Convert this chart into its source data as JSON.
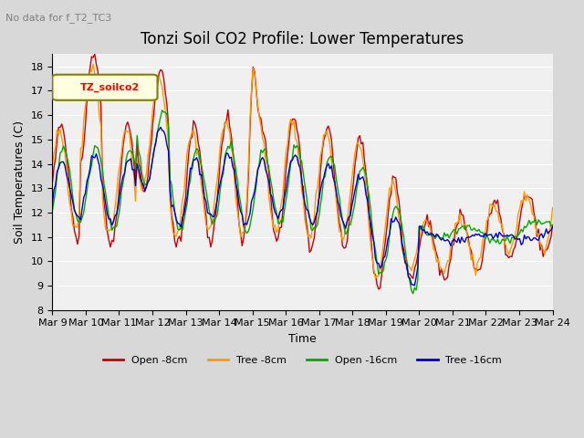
{
  "title": "Tonzi Soil CO2 Profile: Lower Temperatures",
  "subtitle": "No data for f_T2_TC3",
  "xlabel": "Time",
  "ylabel": "Soil Temperatures (C)",
  "ylim": [
    8.0,
    18.5
  ],
  "yticks": [
    8.0,
    9.0,
    10.0,
    11.0,
    12.0,
    13.0,
    14.0,
    15.0,
    16.0,
    17.0,
    18.0
  ],
  "legend_label": "TZ_soilco2",
  "series_labels": [
    "Open -8cm",
    "Tree -8cm",
    "Open -16cm",
    "Tree -16cm"
  ],
  "series_colors": [
    "#cc0000",
    "#ff9900",
    "#00aa00",
    "#0000cc"
  ],
  "bg_color": "#d8d8d8",
  "plot_bg_color": "#f0f0f0",
  "x_dates": [
    "Mar 9",
    "Mar 10",
    "Mar 11",
    "Mar 12",
    "Mar 13",
    "Mar 14",
    "Mar 15",
    "Mar 16",
    "Mar 17",
    "Mar 18",
    "Mar 19",
    "Mar 20",
    "Mar 21",
    "Mar 22",
    "Mar 23",
    "Mar 24"
  ],
  "n_points": 320
}
